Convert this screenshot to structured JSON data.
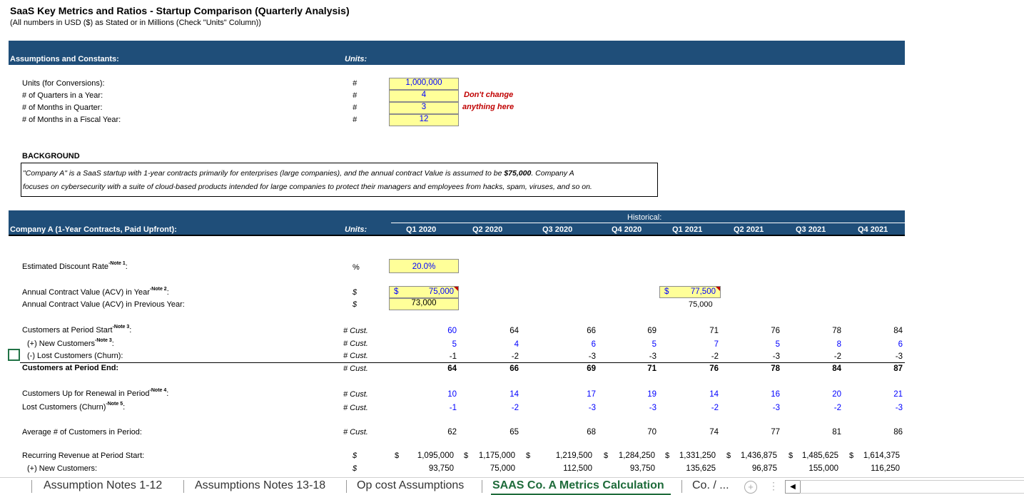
{
  "title": "SaaS Key Metrics and Ratios - Startup Comparison (Quarterly Analysis)",
  "subtitle": "(All numbers in USD ($) as Stated or in Millions (Check \"Units\" Column))",
  "assumptions": {
    "header": "Assumptions and Constants:",
    "units_header": "Units:",
    "rows": [
      {
        "label": "Units (for Conversions):",
        "unit": "#",
        "value": "1,000,000"
      },
      {
        "label": "# of Quarters in a Year:",
        "unit": "#",
        "value": "4"
      },
      {
        "label": "# of Months in Quarter:",
        "unit": "#",
        "value": "3"
      },
      {
        "label": "# of Months in a Fiscal Year:",
        "unit": "#",
        "value": "12"
      }
    ],
    "warning_line1": "Don't change",
    "warning_line2": "anything here"
  },
  "background": {
    "label": "BACKGROUND",
    "line1_pre": "\"Company A\" is a SaaS startup with 1-year contracts primarily for enterprises (large companies), and the annual contract Value is assumed to be",
    "line1_bold": "$75,000",
    "line1_post": ". Company A",
    "line2": "focuses on cybersecurity with a suite of cloud-based products intended for large companies to protect their managers and employees from hacks, spam, viruses, and so on."
  },
  "company": {
    "header": "Company A (1-Year Contracts, Paid Upfront):",
    "units_header": "Units:",
    "historical_label": "Historical:",
    "quarters": [
      "Q1 2020",
      "Q2 2020",
      "Q3 2020",
      "Q4 2020",
      "Q1 2021",
      "Q2 2021",
      "Q3 2021",
      "Q4 2021"
    ]
  },
  "rows": {
    "discount": {
      "label": "Estimated Discount Rate",
      "note": "-Note 1",
      "colon": ":",
      "unit": "%",
      "value": "20.0%"
    },
    "acv": {
      "label": "Annual Contract Value (ACV) in Year",
      "note": "-Note 2",
      "colon": ":",
      "unit": "$",
      "cur": "$",
      "q1_2020": "75,000",
      "q1_2021": "77,500"
    },
    "acv_prev": {
      "label": "Annual Contract Value (ACV) in Previous Year:",
      "unit": "$",
      "q1_2020": "73,000",
      "q1_2021": "75,000"
    },
    "cust_start": {
      "label": "Customers at Period Start",
      "note": "-Note 3",
      "colon": ":",
      "unit": "# Cust.",
      "values": [
        "60",
        "64",
        "66",
        "69",
        "71",
        "76",
        "78",
        "84"
      ]
    },
    "new_cust": {
      "label": "(+) New Customers",
      "note": "-Note 3",
      "colon": ":",
      "unit": "# Cust.",
      "values": [
        "5",
        "4",
        "6",
        "5",
        "7",
        "5",
        "8",
        "6"
      ]
    },
    "lost_cust": {
      "label": "(-) Lost Customers (Churn):",
      "unit": "# Cust.",
      "values": [
        "-1",
        "-2",
        "-3",
        "-3",
        "-2",
        "-3",
        "-2",
        "-3"
      ]
    },
    "cust_end": {
      "label": "Customers at Period End:",
      "unit": "# Cust.",
      "values": [
        "64",
        "66",
        "69",
        "71",
        "76",
        "78",
        "84",
        "87"
      ]
    },
    "renewal": {
      "label": "Customers Up for Renewal in Period",
      "note": "-Note 4",
      "colon": ":",
      "unit": "# Cust.",
      "values": [
        "10",
        "14",
        "17",
        "19",
        "14",
        "16",
        "20",
        "21"
      ]
    },
    "churn": {
      "label": "Lost Customers (Churn)",
      "note": "-Note 5",
      "colon": ":",
      "unit": "# Cust.",
      "values": [
        "-1",
        "-2",
        "-3",
        "-3",
        "-2",
        "-3",
        "-2",
        "-3"
      ]
    },
    "avg_cust": {
      "label": "Average # of Customers in Period:",
      "unit": "# Cust.",
      "values": [
        "62",
        "65",
        "68",
        "70",
        "74",
        "77",
        "81",
        "86"
      ]
    },
    "rev_start": {
      "label": "Recurring Revenue at Period Start:",
      "unit": "$",
      "cur": "$",
      "values": [
        "1,095,000",
        "1,175,000",
        "1,219,500",
        "1,284,250",
        "1,331,250",
        "1,436,875",
        "1,485,625",
        "1,614,375"
      ]
    },
    "rev_new": {
      "label": "(+) New Customers:",
      "unit": "$",
      "values": [
        "93,750",
        "75,000",
        "112,500",
        "93,750",
        "135,625",
        "96,875",
        "155,000",
        "116,250"
      ]
    }
  },
  "tabs": [
    {
      "label": "Assumption Notes 1-12"
    },
    {
      "label": "Assumptions Notes 13-18"
    },
    {
      "label": "Op cost Assumptions"
    },
    {
      "label": "SAAS Co. A Metrics Calculation"
    },
    {
      "label": "Co. / ..."
    }
  ],
  "colors": {
    "header_band": "#1f4e79",
    "input_fill": "#ffff99",
    "input_text": "#0000ff",
    "warning": "#c00000",
    "active_tab": "#1e6b3a"
  }
}
